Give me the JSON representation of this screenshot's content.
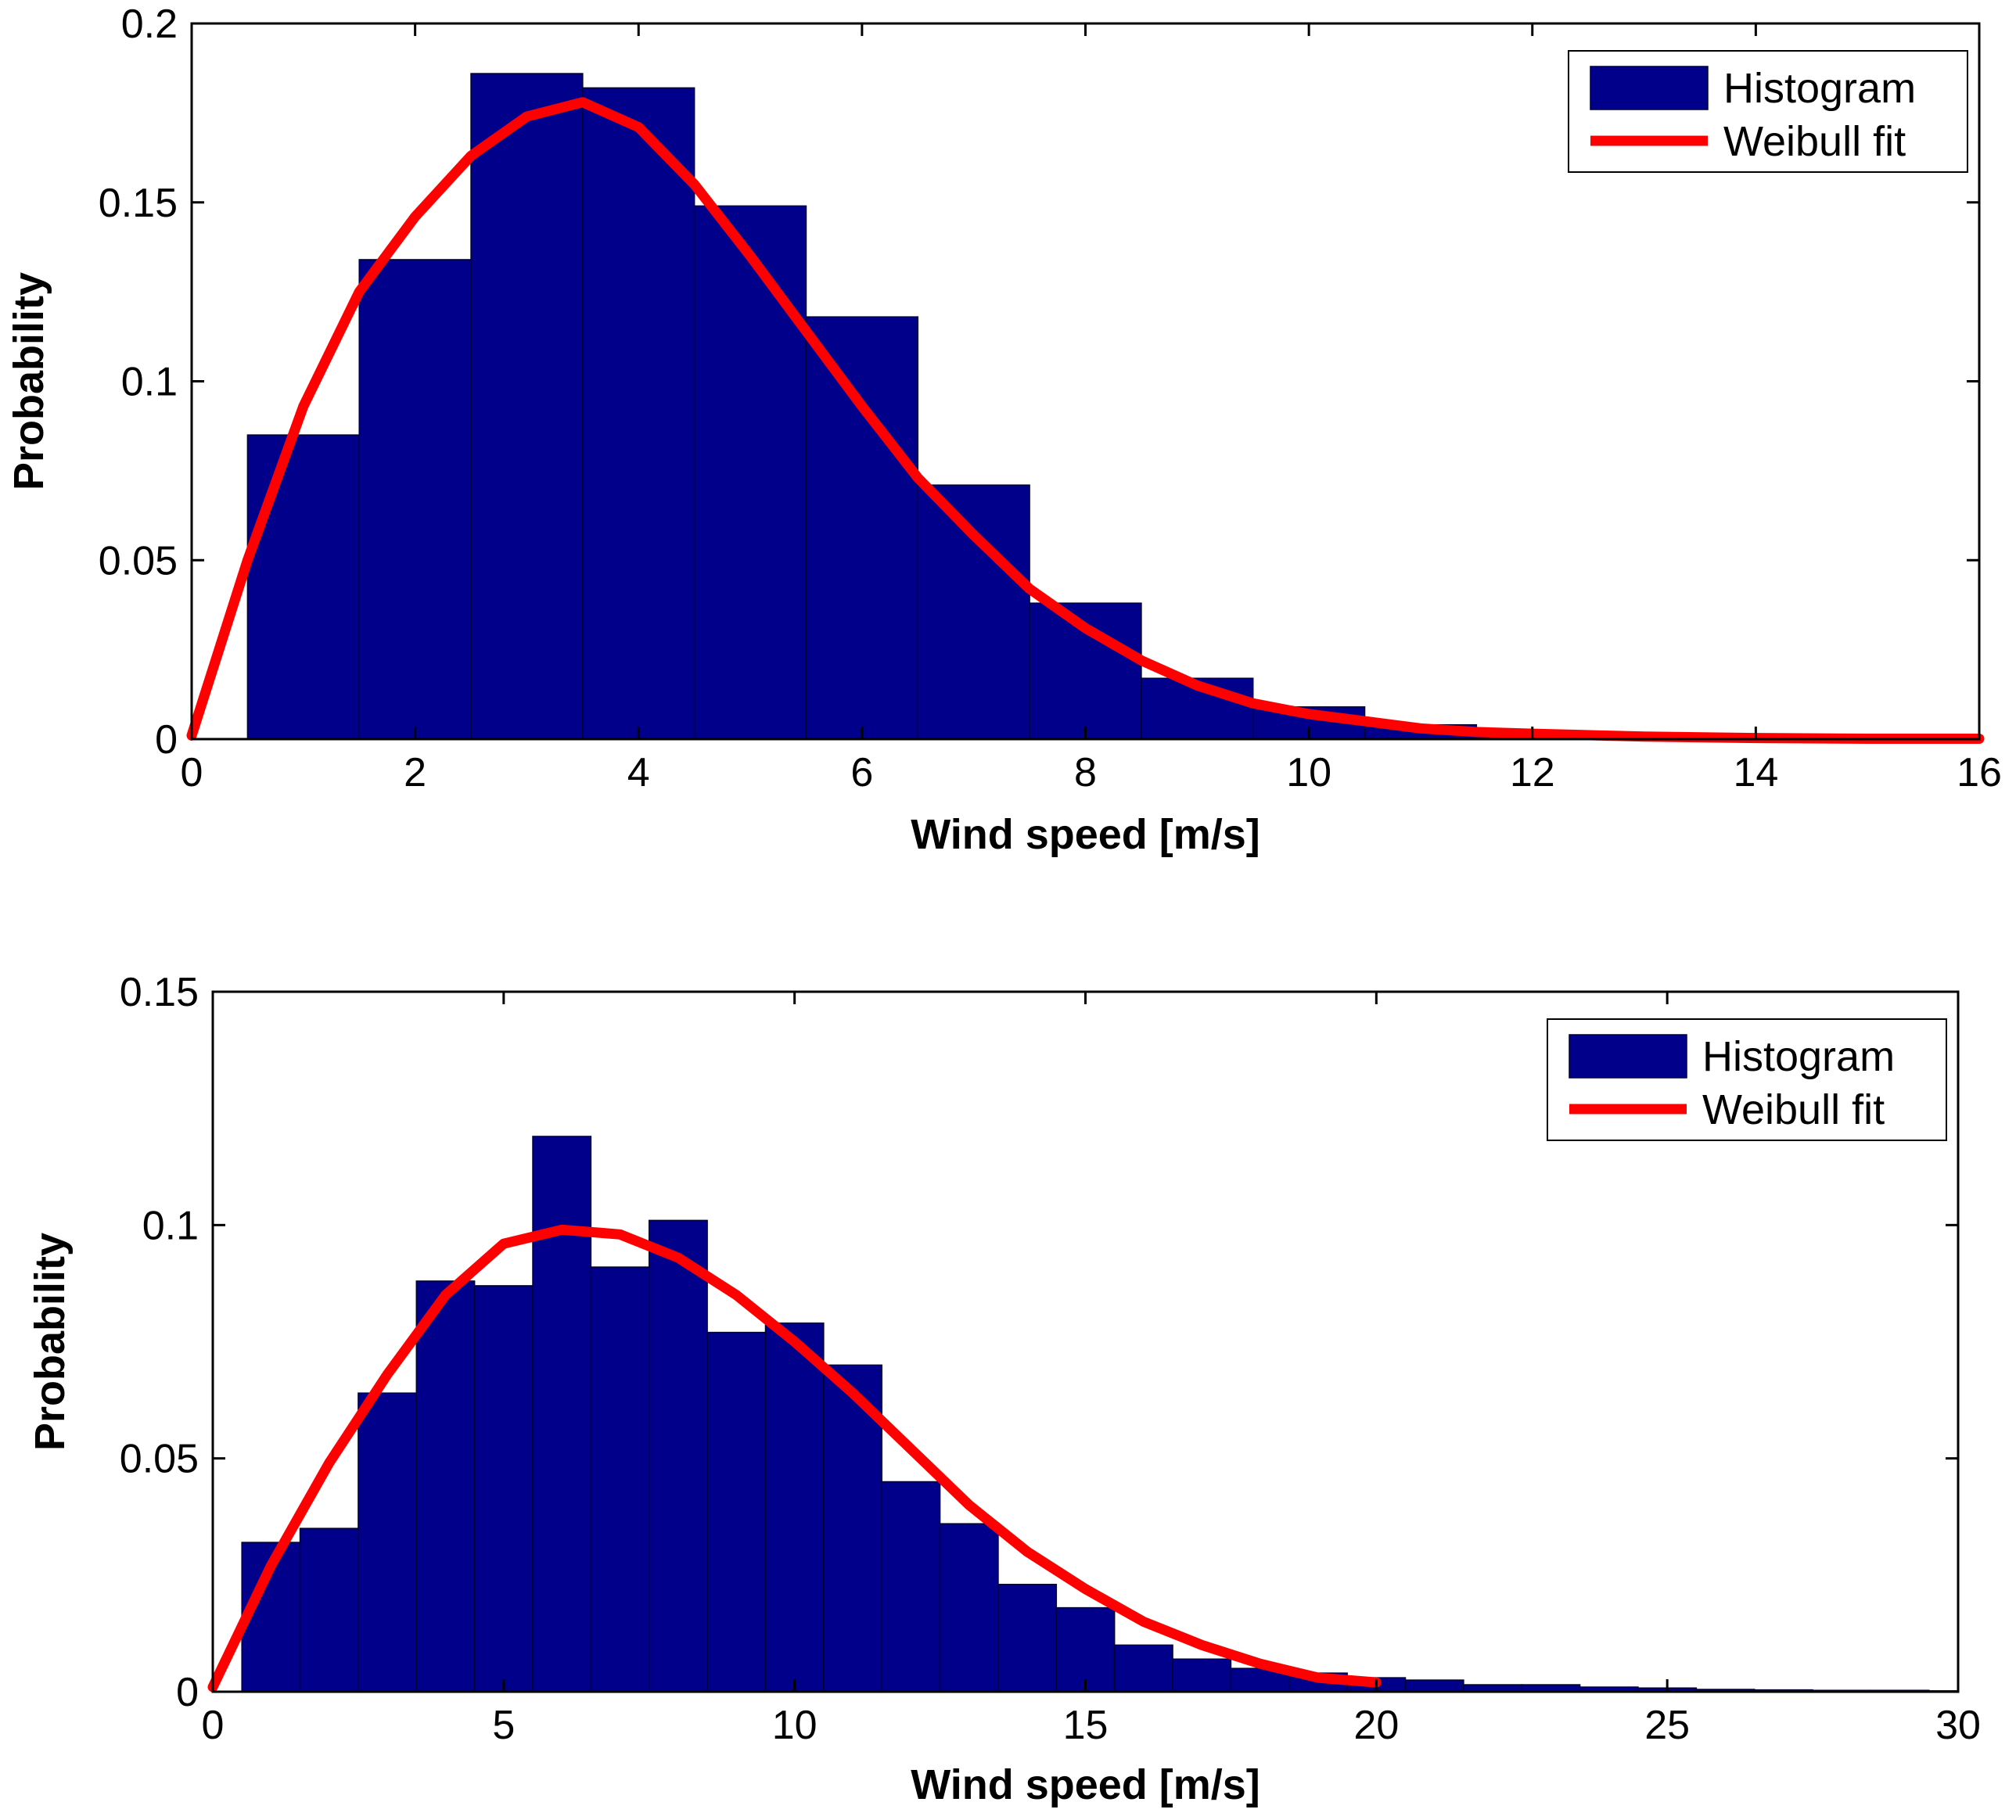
{
  "colors": {
    "histogram": "#00008B",
    "fit": "#FF0000",
    "axes": "#000000",
    "background": "#FFFFFF"
  },
  "chart_data": [
    {
      "type": "bar",
      "xlabel": "Wind speed [m/s]",
      "ylabel": "Probability",
      "xlim": [
        0,
        16
      ],
      "ylim": [
        0,
        0.2
      ],
      "xticks": [
        "0",
        "2",
        "4",
        "6",
        "8",
        "10",
        "12",
        "14",
        "16"
      ],
      "xtick_values": [
        0,
        2,
        4,
        6,
        8,
        10,
        12,
        14,
        16
      ],
      "yticks": [
        "0",
        "0.05",
        "0.1",
        "0.15",
        "0.2"
      ],
      "ytick_values": [
        0,
        0.05,
        0.1,
        0.15,
        0.2
      ],
      "legend": {
        "placement": "top-right",
        "entries": [
          "Histogram",
          "Weibull fit"
        ]
      },
      "histogram": {
        "name": "Histogram",
        "bin_centers": [
          1,
          2,
          3,
          4,
          5,
          6,
          7,
          8,
          9,
          10,
          11,
          12,
          13,
          14,
          15,
          16
        ],
        "values": [
          0.085,
          0.134,
          0.186,
          0.182,
          0.149,
          0.118,
          0.071,
          0.038,
          0.017,
          0.009,
          0.004,
          0.002,
          0.001,
          0.0005,
          0.0003,
          0.0002
        ]
      },
      "fit": {
        "name": "Weibull fit",
        "x": [
          0,
          0.5,
          1,
          1.5,
          2,
          2.5,
          3,
          3.5,
          4,
          4.5,
          5,
          5.5,
          6,
          6.5,
          7,
          7.5,
          8,
          8.5,
          9,
          9.5,
          10,
          10.5,
          11,
          11.5,
          12,
          13,
          14,
          15,
          16
        ],
        "y": [
          0.001,
          0.05,
          0.093,
          0.125,
          0.146,
          0.163,
          0.174,
          0.178,
          0.171,
          0.155,
          0.135,
          0.114,
          0.093,
          0.073,
          0.057,
          0.042,
          0.031,
          0.022,
          0.015,
          0.01,
          0.007,
          0.005,
          0.003,
          0.002,
          0.0015,
          0.0007,
          0.0003,
          0.0001,
          0.0001
        ]
      }
    },
    {
      "type": "bar",
      "xlabel": "Wind speed [m/s]",
      "ylabel": "Probability",
      "xlim": [
        0,
        30
      ],
      "ylim": [
        0,
        0.15
      ],
      "xticks": [
        "0",
        "5",
        "10",
        "15",
        "20",
        "25",
        "30"
      ],
      "xtick_values": [
        0,
        5,
        10,
        15,
        20,
        25,
        30
      ],
      "yticks": [
        "0",
        "0.05",
        "0.1",
        "0.15"
      ],
      "ytick_values": [
        0,
        0.05,
        0.1,
        0.15
      ],
      "legend": {
        "placement": "top-right",
        "entries": [
          "Histogram",
          "Weibull fit"
        ]
      },
      "histogram": {
        "name": "Histogram",
        "bin_centers": [
          1,
          2,
          3,
          4,
          5,
          6,
          7,
          8,
          9,
          10,
          11,
          12,
          13,
          14,
          15,
          16,
          17,
          18,
          19,
          20,
          21,
          22,
          23,
          24,
          25,
          26,
          27,
          28,
          29,
          30
        ],
        "values": [
          0.032,
          0.035,
          0.064,
          0.088,
          0.087,
          0.119,
          0.091,
          0.101,
          0.077,
          0.079,
          0.07,
          0.045,
          0.036,
          0.023,
          0.018,
          0.01,
          0.007,
          0.005,
          0.004,
          0.003,
          0.0025,
          0.0015,
          0.0015,
          0.001,
          0.0008,
          0.0005,
          0.0004,
          0.0003,
          0.0003,
          0.0002
        ]
      },
      "fit": {
        "name": "Weibull fit",
        "x": [
          0,
          1,
          2,
          3,
          4,
          5,
          6,
          7,
          8,
          9,
          10,
          11,
          12,
          13,
          14,
          15,
          16,
          17,
          18,
          19,
          20
        ],
        "y": [
          0.001,
          0.027,
          0.049,
          0.068,
          0.085,
          0.096,
          0.099,
          0.098,
          0.093,
          0.085,
          0.075,
          0.064,
          0.052,
          0.04,
          0.03,
          0.022,
          0.015,
          0.01,
          0.006,
          0.003,
          0.002
        ]
      }
    }
  ]
}
